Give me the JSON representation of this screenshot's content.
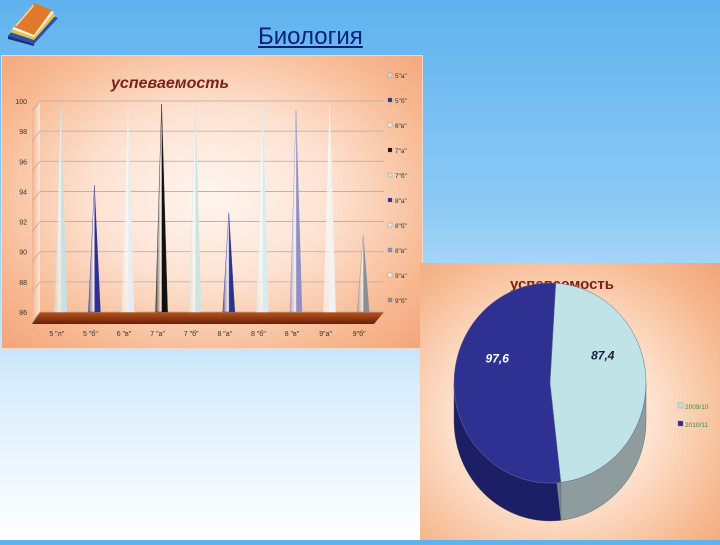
{
  "header": {
    "title": "Биология",
    "logo_icon": "books-icon"
  },
  "colors": {
    "title": "#0b1f7a",
    "chart_title": "#7a2318",
    "pie_series_1": "#bfe3e6",
    "pie_series_2": "#2e3192",
    "pie_label": "#1a1a40",
    "pie_legend_text": "#3a8f2a"
  },
  "chart_data": [
    {
      "type": "bar",
      "mark_shape": "cone",
      "title": "успеваемость",
      "categories": [
        "5 \"л\"",
        "5 \"б\"",
        "6 \"в\"",
        "7 \"а\"",
        "7 \"б\"",
        "8 \"а\"",
        "8 \"б\"",
        "8 \"в\"",
        "9\"а\"",
        "9\"б\""
      ],
      "values": [
        99.8,
        94.4,
        99.6,
        99.8,
        99.8,
        92.6,
        99.8,
        99.4,
        99.7,
        91.1
      ],
      "point_colors": [
        "#c6e1e6",
        "#2e3192",
        "#e9ecee",
        "#111111",
        "#cfe4df",
        "#2e3192",
        "#d8ecef",
        "#8f8fc4",
        "#f2f2f2",
        "#8a8f96"
      ],
      "ylim": [
        86,
        100
      ],
      "yticks": [
        "86",
        "88",
        "90",
        "92",
        "94",
        "96",
        "98",
        "100"
      ],
      "legend": [
        "5\"а\"",
        "5\"б\"",
        "6\"в\"",
        "7\"а\"",
        "7\"б\"",
        "8\"а\"",
        "8\"б\"",
        "8\"в\"",
        "9\"а\"",
        "9\"б\""
      ],
      "legend_position": "right",
      "grid": true
    },
    {
      "type": "pie",
      "title": "успеваемость",
      "values": [
        87.4,
        97.6
      ],
      "data_labels": [
        "87,4",
        "97,6"
      ],
      "legend": [
        "2009/10",
        "2010/11"
      ],
      "colors": [
        "#bfe3e6",
        "#2e3192"
      ],
      "legend_position": "right",
      "style": "3d"
    }
  ]
}
